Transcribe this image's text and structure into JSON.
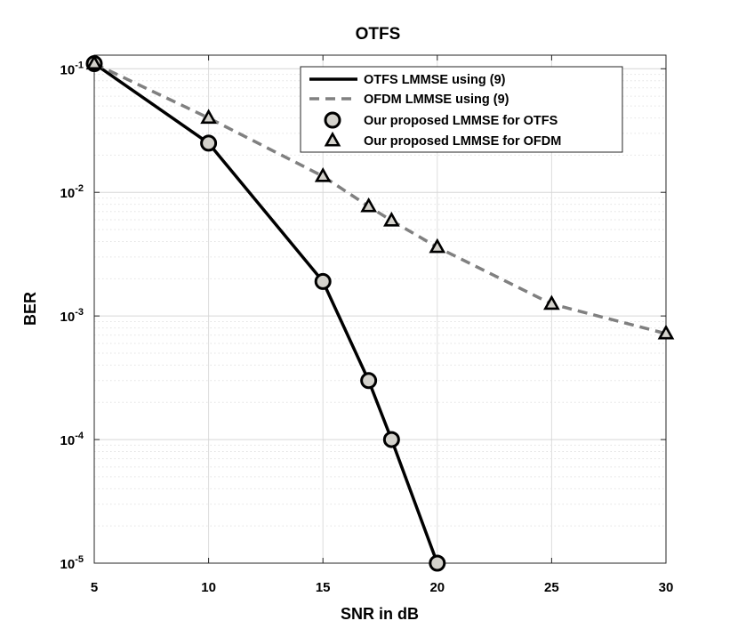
{
  "chart_data": {
    "type": "line",
    "title": "OTFS",
    "xlabel": "SNR in dB",
    "ylabel": "BER",
    "xlim": [
      5,
      30
    ],
    "ylim": [
      1e-05,
      0.1
    ],
    "yscale": "log",
    "grid": true,
    "legend_position": "top-right",
    "x_ticks": [
      5,
      10,
      15,
      20,
      25,
      30
    ],
    "y_ticks": [
      {
        "value": 0.1,
        "base": "10",
        "exp": "-1"
      },
      {
        "value": 0.01,
        "base": "10",
        "exp": "-2"
      },
      {
        "value": 0.001,
        "base": "10",
        "exp": "-3"
      },
      {
        "value": 0.0001,
        "base": "10",
        "exp": "-4"
      },
      {
        "value": 1e-05,
        "base": "10",
        "exp": "-5"
      }
    ],
    "series": [
      {
        "name": "OTFS LMMSE using (9)",
        "style": "solid-line",
        "color": "#000000",
        "x": [
          5,
          10,
          15,
          17,
          18,
          20
        ],
        "y": [
          0.11,
          0.025,
          0.0019,
          0.0003,
          0.0001,
          1e-05
        ]
      },
      {
        "name": "OFDM LMMSE using (9)",
        "style": "dashed-line",
        "color": "#808080",
        "x": [
          5,
          10,
          15,
          17,
          18,
          20,
          25,
          30
        ],
        "y": [
          0.11,
          0.04,
          0.0135,
          0.0077,
          0.0059,
          0.0036,
          0.00125,
          0.00072
        ]
      },
      {
        "name": "Our proposed LMMSE for OTFS",
        "style": "circle-marker",
        "color": "#d4d2cc",
        "x": [
          5,
          10,
          15,
          17,
          18,
          20
        ],
        "y": [
          0.11,
          0.025,
          0.0019,
          0.0003,
          0.0001,
          1e-05
        ]
      },
      {
        "name": "Our proposed LMMSE for OFDM",
        "style": "triangle-marker",
        "color": "#d4d2cc",
        "x": [
          5,
          10,
          15,
          17,
          18,
          20,
          25,
          30
        ],
        "y": [
          0.11,
          0.04,
          0.0135,
          0.0077,
          0.0059,
          0.0036,
          0.00125,
          0.00072
        ]
      }
    ]
  }
}
